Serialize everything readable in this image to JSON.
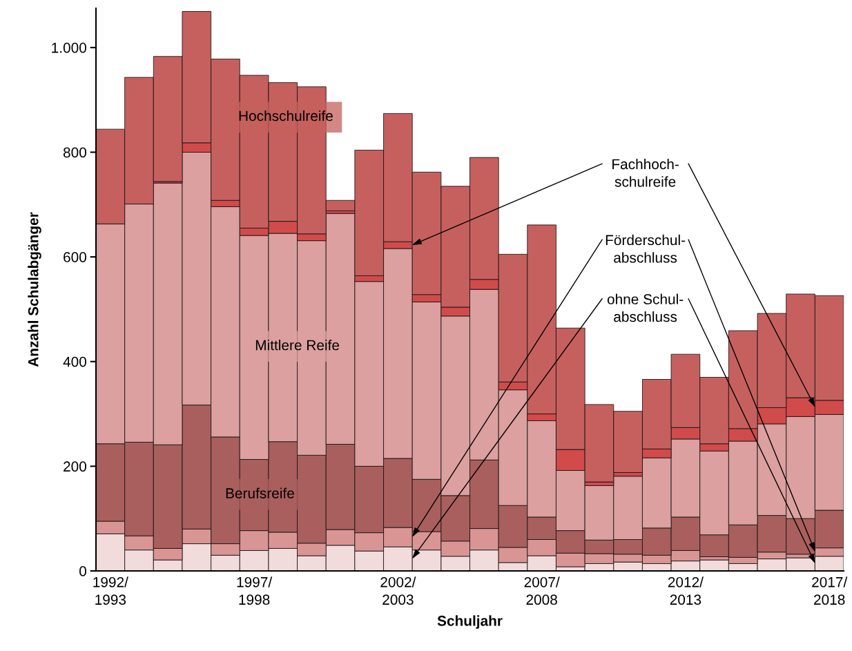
{
  "chart_data": {
    "type": "bar",
    "stacked": true,
    "xlabel": "Schuljahr",
    "ylabel": "Anzahl Schulabgänger",
    "categories": [
      "1992/\n1993",
      null,
      null,
      null,
      null,
      "1997/\n1998",
      null,
      null,
      null,
      null,
      "2002/\n2003",
      null,
      null,
      null,
      null,
      "2007/\n2008",
      null,
      null,
      null,
      null,
      "2012/\n2013",
      null,
      null,
      null,
      null,
      "2017/\n2018"
    ],
    "series": [
      {
        "name": "ohne Schul-\nabschluss",
        "color": "#f2dcdb",
        "values": [
          71,
          40,
          21,
          52,
          30,
          39,
          43,
          29,
          49,
          38,
          46,
          40,
          28,
          40,
          16,
          29,
          8,
          14,
          17,
          14,
          19,
          21,
          14,
          23,
          25,
          28
        ]
      },
      {
        "name": "Förderschul-\nabschluss",
        "color": "#d99594",
        "values": [
          24,
          27,
          22,
          28,
          22,
          38,
          31,
          24,
          30,
          35,
          37,
          35,
          29,
          41,
          29,
          31,
          26,
          19,
          15,
          16,
          20,
          6,
          12,
          13,
          7,
          16
        ]
      },
      {
        "name": "Berufsreife",
        "color": "#a95f5d",
        "values": [
          148,
          179,
          198,
          237,
          204,
          136,
          173,
          168,
          163,
          127,
          132,
          100,
          87,
          131,
          80,
          43,
          43,
          26,
          28,
          52,
          64,
          42,
          62,
          70,
          68,
          72
        ]
      },
      {
        "name": "Mittlere Reife",
        "color": "#dba09f",
        "values": [
          420,
          455,
          500,
          483,
          440,
          428,
          398,
          410,
          441,
          353,
          401,
          339,
          343,
          326,
          221,
          184,
          115,
          104,
          121,
          134,
          149,
          160,
          160,
          175,
          195,
          183
        ]
      },
      {
        "name": "Fachhoch-\nschulreife",
        "color": "#d24b4b",
        "values": [
          null,
          null,
          3,
          18,
          12,
          14,
          23,
          13,
          5,
          11,
          13,
          14,
          17,
          19,
          15,
          13,
          40,
          7,
          7,
          17,
          22,
          14,
          24,
          31,
          36,
          27
        ]
      },
      {
        "name": "Hochschulreife",
        "color": "#c6605e",
        "values": [
          181,
          242,
          239,
          251,
          270,
          292,
          265,
          281,
          20,
          240,
          245,
          234,
          231,
          233,
          244,
          361,
          232,
          148,
          117,
          133,
          140,
          127,
          187,
          180,
          198,
          200
        ]
      }
    ],
    "ylim": [
      0,
      1075
    ],
    "yticks": [
      0,
      200,
      400,
      600,
      800,
      {
        "value": 1000,
        "label": "1.000"
      }
    ],
    "grid": false,
    "legend": false
  }
}
